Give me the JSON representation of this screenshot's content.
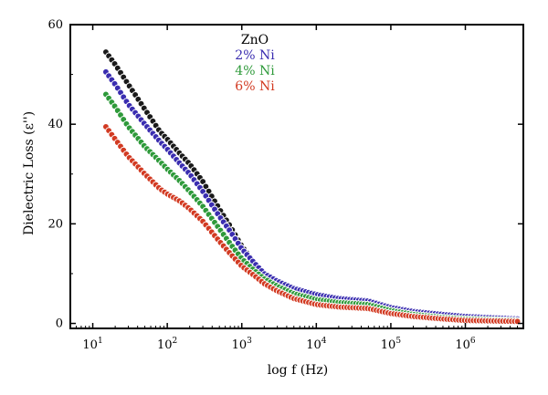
{
  "chart_data": {
    "type": "scatter",
    "title": "",
    "xlabel": "log f (Hz)",
    "ylabel": "Dielectric Loss (ε'')",
    "x_scale": "log",
    "xlim": [
      5,
      6000000
    ],
    "ylim": [
      -1,
      60
    ],
    "x_ticks": [
      10,
      100,
      1000,
      10000,
      100000,
      1000000
    ],
    "x_tick_labels": [
      {
        "base": "10",
        "exp": "1"
      },
      {
        "base": "10",
        "exp": "2"
      },
      {
        "base": "10",
        "exp": "3"
      },
      {
        "base": "10",
        "exp": "4"
      },
      {
        "base": "10",
        "exp": "5"
      },
      {
        "base": "10",
        "exp": "6"
      }
    ],
    "y_ticks": [
      0,
      20,
      40,
      60
    ],
    "y_tick_labels": [
      "0",
      "20",
      "40",
      "60"
    ],
    "grid": false,
    "legend_position": "top-center",
    "series": [
      {
        "name": "ZnO",
        "color": "#1a1a1a",
        "x": [
          15,
          20,
          30,
          50,
          80,
          100,
          150,
          200,
          300,
          500,
          700,
          1000,
          1500,
          2000,
          3000,
          5000,
          10000,
          20000,
          50000,
          100000,
          200000,
          500000,
          1000000,
          5000000
        ],
        "y": [
          54.5,
          52,
          48,
          43,
          38.5,
          37,
          34,
          32,
          28.5,
          23,
          19.5,
          15.5,
          12,
          10,
          8,
          6.5,
          5.5,
          4.8,
          4.2,
          3,
          2.2,
          1.6,
          1.3,
          0.8
        ]
      },
      {
        "name": "2% Ni",
        "color": "#3a2db0",
        "x": [
          15,
          20,
          30,
          50,
          80,
          100,
          150,
          200,
          300,
          500,
          700,
          1000,
          1500,
          2000,
          3000,
          5000,
          10000,
          20000,
          50000,
          100000,
          200000,
          500000,
          1000000,
          5000000
        ],
        "y": [
          50.5,
          48,
          44,
          40,
          36.5,
          35,
          32,
          30,
          26.5,
          21.5,
          18.5,
          15,
          12,
          10,
          8.5,
          7,
          5.8,
          5,
          4.5,
          3.2,
          2.4,
          1.8,
          1.4,
          0.9
        ]
      },
      {
        "name": "4% Ni",
        "color": "#2e9a3a",
        "x": [
          15,
          20,
          30,
          50,
          80,
          100,
          150,
          200,
          300,
          500,
          700,
          1000,
          1500,
          2000,
          3000,
          5000,
          10000,
          20000,
          50000,
          100000,
          200000,
          500000,
          1000000,
          5000000
        ],
        "y": [
          46,
          43.5,
          39.5,
          35.5,
          32.5,
          31,
          28.5,
          26.5,
          23.5,
          19,
          16,
          13,
          10.5,
          9,
          7.5,
          6,
          4.8,
          4.2,
          3.8,
          2.6,
          1.8,
          1.2,
          0.9,
          0.6
        ]
      },
      {
        "name": "6% Ni",
        "color": "#d23a22",
        "x": [
          15,
          20,
          30,
          50,
          80,
          100,
          150,
          200,
          300,
          500,
          700,
          1000,
          1500,
          2000,
          3000,
          5000,
          10000,
          20000,
          50000,
          100000,
          200000,
          500000,
          1000000,
          5000000
        ],
        "y": [
          39.5,
          37,
          33.5,
          30,
          27,
          26,
          24.5,
          23,
          20.5,
          16.5,
          14,
          11.5,
          9.5,
          8,
          6.5,
          5,
          3.8,
          3.3,
          3,
          2,
          1.4,
          0.9,
          0.6,
          0.4
        ]
      }
    ]
  }
}
